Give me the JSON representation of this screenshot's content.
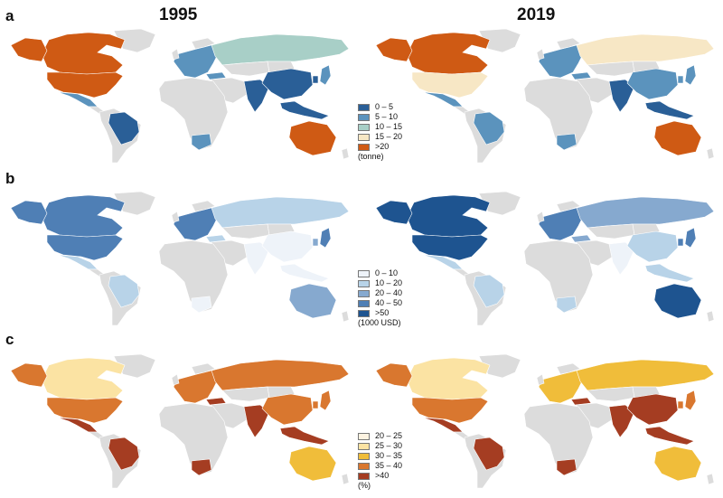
{
  "titles": {
    "left": "1995",
    "right": "2019"
  },
  "panels": [
    {
      "letter": "a",
      "legend": {
        "items": [
          {
            "label": "0 – 5",
            "color": "#2a5f97"
          },
          {
            "label": "5 – 10",
            "color": "#5b93bd"
          },
          {
            "label": "10 – 15",
            "color": "#a8cfc7"
          },
          {
            "label": "15 – 20",
            "color": "#f7e7c5"
          },
          {
            "label": ">20",
            "color": "#cf5a14"
          }
        ],
        "unit": "(tonne)"
      },
      "maps": {
        "1995": {
          "NAM": "#cf5a14",
          "MEX": "#5b93bd",
          "BRA": "#2a5f97",
          "RUS": "#a8cfc7",
          "EUR": "#5b93bd",
          "CHN": "#2a5f97",
          "IND": "#2a5f97",
          "SEA": "#2a5f97",
          "AUS": "#cf5a14",
          "ZAF": "#5b93bd",
          "TUR": "#5b93bd",
          "JPN": "#5b93bd",
          "KOR": "#2a5f97"
        },
        "2019": {
          "CAN": "#cf5a14",
          "USA": "#f7e7c5",
          "ALK": "#cf5a14",
          "MEX": "#5b93bd",
          "BRA": "#5b93bd",
          "RUS": "#f7e7c5",
          "EUR": "#5b93bd",
          "CHN": "#5b93bd",
          "IND": "#2a5f97",
          "SEA": "#2a5f97",
          "AUS": "#cf5a14",
          "ZAF": "#5b93bd",
          "TUR": "#5b93bd",
          "JPN": "#5b93bd",
          "KOR": "#5b93bd"
        }
      }
    },
    {
      "letter": "b",
      "legend": {
        "items": [
          {
            "label": "0 – 10",
            "color": "#eef3f9"
          },
          {
            "label": "10 – 20",
            "color": "#b8d3e8"
          },
          {
            "label": "20 – 40",
            "color": "#86a9cf"
          },
          {
            "label": "40 – 50",
            "color": "#4f7fb5"
          },
          {
            "label": ">50",
            "color": "#1e5490"
          }
        ],
        "unit": "(1000 USD)"
      },
      "maps": {
        "1995": {
          "NAM": "#4f7fb5",
          "MEX": "#b8d3e8",
          "BRA": "#b8d3e8",
          "RUS": "#b8d3e8",
          "EUR": "#4f7fb5",
          "CHN": "#eef3f9",
          "IND": "#eef3f9",
          "SEA": "#eef3f9",
          "AUS": "#86a9cf",
          "ZAF": "#eef3f9",
          "TUR": "#b8d3e8",
          "JPN": "#4f7fb5",
          "KOR": "#86a9cf"
        },
        "2019": {
          "NAM": "#1e5490",
          "MEX": "#b8d3e8",
          "BRA": "#b8d3e8",
          "RUS": "#86a9cf",
          "EUR": "#4f7fb5",
          "CHN": "#b8d3e8",
          "IND": "#eef3f9",
          "SEA": "#b8d3e8",
          "AUS": "#1e5490",
          "ZAF": "#b8d3e8",
          "TUR": "#86a9cf",
          "JPN": "#4f7fb5",
          "KOR": "#4f7fb5"
        }
      }
    },
    {
      "letter": "c",
      "legend": {
        "items": [
          {
            "label": "20 – 25",
            "color": "#fdf3e1"
          },
          {
            "label": "25 – 30",
            "color": "#fbe3a3"
          },
          {
            "label": "30 – 35",
            "color": "#f0bd3a"
          },
          {
            "label": "35 – 40",
            "color": "#d9772f"
          },
          {
            "label": ">40",
            "color": "#a53d22"
          }
        ],
        "unit": "(%)"
      },
      "maps": {
        "1995": {
          "CAN": "#fbe3a3",
          "USA": "#d9772f",
          "ALK": "#d9772f",
          "MEX": "#a53d22",
          "BRA": "#a53d22",
          "RUS": "#d9772f",
          "EUR": "#d9772f",
          "CHN": "#d9772f",
          "IND": "#a53d22",
          "SEA": "#a53d22",
          "AUS": "#f0bd3a",
          "ZAF": "#a53d22",
          "TUR": "#a53d22",
          "JPN": "#d9772f",
          "KOR": "#d9772f"
        },
        "2019": {
          "CAN": "#fbe3a3",
          "USA": "#d9772f",
          "ALK": "#d9772f",
          "MEX": "#a53d22",
          "BRA": "#a53d22",
          "RUS": "#f0bd3a",
          "EUR": "#f0bd3a",
          "CHN": "#a53d22",
          "IND": "#a53d22",
          "SEA": "#a53d22",
          "AUS": "#f0bd3a",
          "ZAF": "#a53d22",
          "TUR": "#a53d22",
          "JPN": "#d9772f",
          "KOR": "#d9772f"
        }
      }
    }
  ]
}
